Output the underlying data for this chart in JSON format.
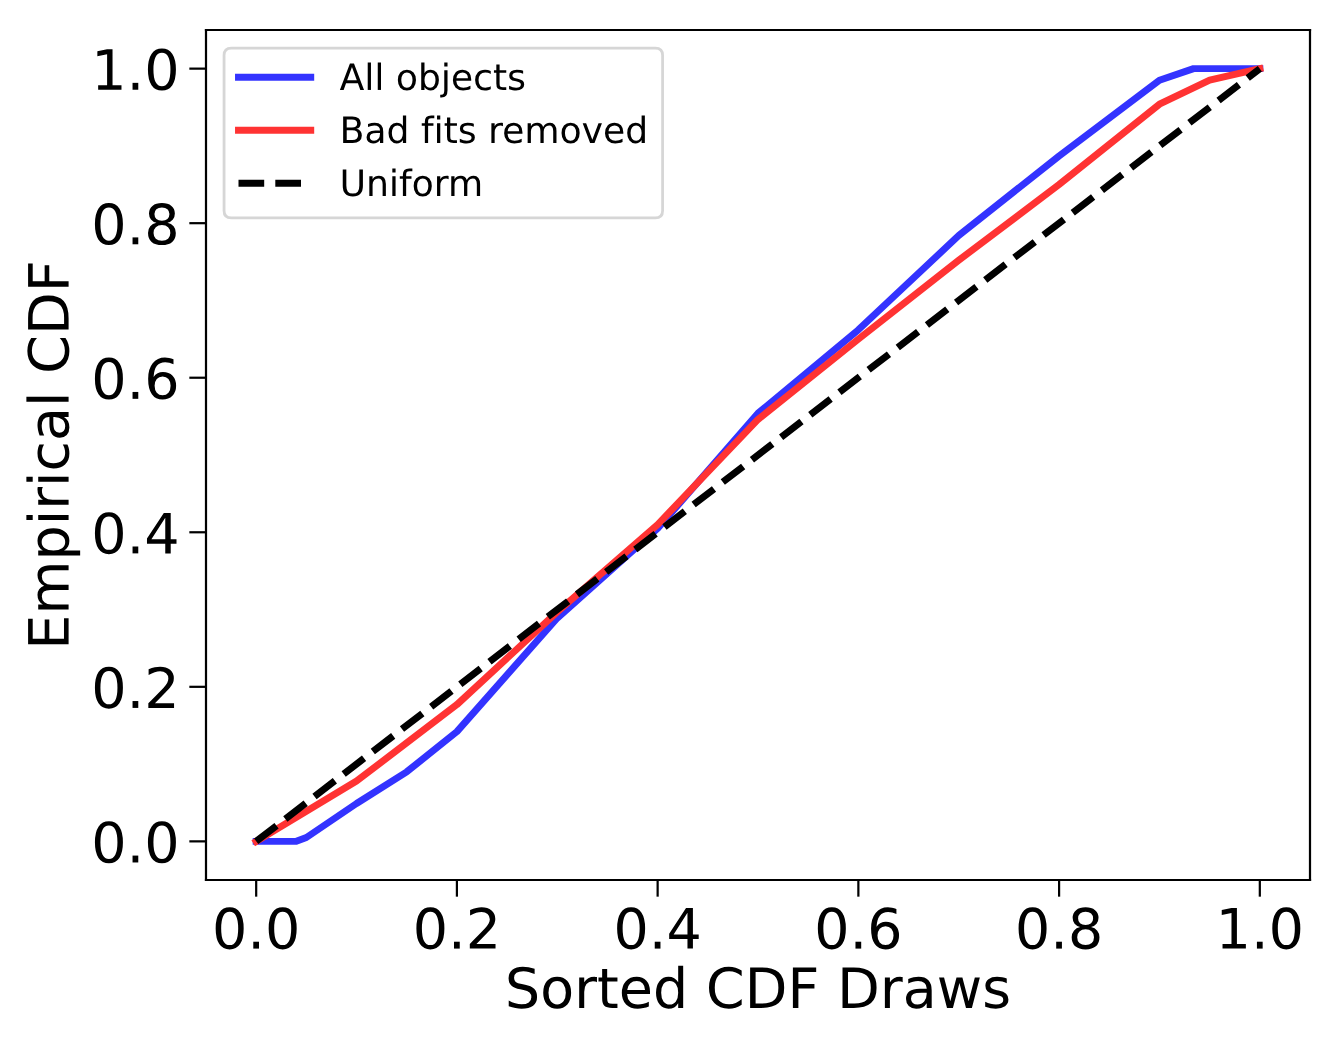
{
  "chart_data": {
    "type": "line",
    "xlabel": "Sorted CDF Draws",
    "ylabel": "Empirical CDF",
    "xlim": [
      -0.05,
      1.05
    ],
    "ylim": [
      -0.05,
      1.05
    ],
    "xticks": [
      {
        "value": 0,
        "label": "0.0"
      },
      0.2,
      0.4,
      0.6,
      0.8,
      {
        "value": 1,
        "label": "1.0"
      }
    ],
    "yticks": [
      {
        "value": 0,
        "label": "0.0"
      },
      0.2,
      0.4,
      0.6,
      0.8,
      {
        "value": 1,
        "label": "1.0"
      }
    ],
    "legend": "top left",
    "grid": false,
    "series": [
      {
        "name": "All objects",
        "color": "#3333ff",
        "line_style": "solid",
        "x": [
          0,
          0.04,
          0.05,
          0.1,
          0.15,
          0.2,
          0.3,
          0.4,
          0.5,
          0.6,
          0.7,
          0.8,
          0.9,
          0.934,
          1.0
        ],
        "values": [
          0,
          0,
          0.005,
          0.049,
          0.09,
          0.142,
          0.289,
          0.405,
          0.554,
          0.662,
          0.784,
          0.887,
          0.985,
          1.0,
          1.0
        ]
      },
      {
        "name": "Bad fits removed",
        "color": "#ff3333",
        "line_style": "solid",
        "x": [
          0,
          0.1,
          0.2,
          0.3,
          0.4,
          0.5,
          0.6,
          0.7,
          0.8,
          0.9,
          0.95,
          1.0
        ],
        "values": [
          0,
          0.078,
          0.177,
          0.297,
          0.41,
          0.546,
          0.65,
          0.752,
          0.85,
          0.954,
          0.985,
          1.0
        ]
      },
      {
        "name": "Uniform",
        "color": "#000000",
        "line_style": "dashed",
        "x": [
          0,
          1.0
        ],
        "values": [
          0,
          1.0
        ]
      }
    ]
  }
}
